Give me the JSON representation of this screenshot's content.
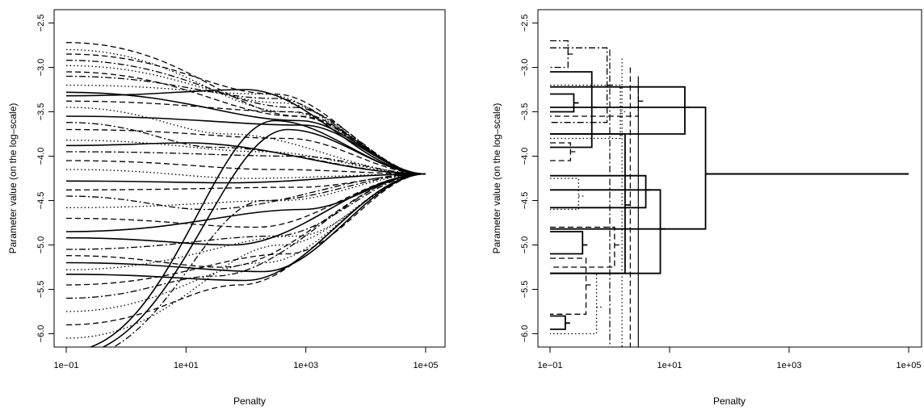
{
  "chart_data": [
    {
      "type": "line",
      "xlabel": "Penalty",
      "ylabel": "Parameter value (on the log–scale)",
      "x_scale": "log10",
      "xlim": [
        0.1,
        100000
      ],
      "ylim": [
        -6.15,
        -2.35
      ],
      "x_ticks": [
        0.1,
        10,
        1000,
        100000
      ],
      "x_tick_labels": [
        "1e−01",
        "1e+01",
        "1e+03",
        "1e+05"
      ],
      "y_ticks": [
        -6.0,
        -5.5,
        -5.0,
        -4.5,
        -4.0,
        -3.5,
        -3.0,
        -2.5
      ],
      "y_tick_labels": [
        "−6.0",
        "−5.5",
        "−5.0",
        "−4.5",
        "−4.0",
        "−3.5",
        "−3.0",
        "−2.5"
      ],
      "grid": false,
      "legend": "none",
      "converge_value": -4.2,
      "converge_x": 100000,
      "series": [
        {
          "start": -2.72,
          "mid_x": 800,
          "mid_y": -3.55,
          "style": "dashed"
        },
        {
          "start": -2.8,
          "mid_x": 500,
          "mid_y": -3.5,
          "style": "dotted"
        },
        {
          "start": -2.85,
          "mid_x": 300,
          "mid_y": -3.3,
          "style": "dashed"
        },
        {
          "start": -2.92,
          "mid_x": 600,
          "mid_y": -3.45,
          "style": "dashdot"
        },
        {
          "start": -2.98,
          "mid_x": 400,
          "mid_y": -3.4,
          "style": "dotted"
        },
        {
          "start": -3.05,
          "mid_x": 700,
          "mid_y": -3.55,
          "style": "dashed"
        },
        {
          "start": -3.1,
          "mid_x": 300,
          "mid_y": -3.35,
          "style": "dashdot"
        },
        {
          "start": -3.2,
          "mid_x": 200,
          "mid_y": -3.3,
          "style": "dotted"
        },
        {
          "start": -3.28,
          "mid_x": 800,
          "mid_y": -3.6,
          "style": "solid"
        },
        {
          "start": -3.32,
          "mid_x": 100,
          "mid_y": -3.25,
          "style": "solid"
        },
        {
          "start": -3.38,
          "mid_x": 600,
          "mid_y": -3.5,
          "style": "dashed"
        },
        {
          "start": -3.45,
          "mid_x": 50,
          "mid_y": -3.75,
          "style": "dotted"
        },
        {
          "start": -3.55,
          "mid_x": 900,
          "mid_y": -3.65,
          "style": "solid"
        },
        {
          "start": -3.62,
          "mid_x": 30,
          "mid_y": -3.9,
          "style": "dashdot"
        },
        {
          "start": -3.7,
          "mid_x": 500,
          "mid_y": -3.8,
          "style": "dashed"
        },
        {
          "start": -3.82,
          "mid_x": 200,
          "mid_y": -3.95,
          "style": "dotted"
        },
        {
          "start": -3.88,
          "mid_x": 10,
          "mid_y": -3.85,
          "style": "solid"
        },
        {
          "start": -3.95,
          "mid_x": 700,
          "mid_y": -4.0,
          "style": "dashdot"
        },
        {
          "start": -4.05,
          "mid_x": 300,
          "mid_y": -4.15,
          "style": "dashed"
        },
        {
          "start": -4.15,
          "mid_x": 100,
          "mid_y": -4.25,
          "style": "dotted"
        },
        {
          "start": -4.28,
          "mid_x": 50,
          "mid_y": -4.3,
          "style": "solid"
        },
        {
          "start": -4.38,
          "mid_x": 800,
          "mid_y": -4.35,
          "style": "dashed"
        },
        {
          "start": -4.45,
          "mid_x": 20,
          "mid_y": -4.6,
          "style": "dashdot"
        },
        {
          "start": -4.58,
          "mid_x": 400,
          "mid_y": -4.5,
          "style": "dotted"
        },
        {
          "start": -4.7,
          "mid_x": 150,
          "mid_y": -4.8,
          "style": "dashed"
        },
        {
          "start": -4.85,
          "mid_x": 900,
          "mid_y": -4.6,
          "style": "solid"
        },
        {
          "start": -4.92,
          "mid_x": 60,
          "mid_y": -5.0,
          "style": "solid"
        },
        {
          "start": -5.05,
          "mid_x": 300,
          "mid_y": -4.9,
          "style": "dashdot"
        },
        {
          "start": -5.12,
          "mid_x": 40,
          "mid_y": -5.25,
          "style": "dashed"
        },
        {
          "start": -5.2,
          "mid_x": 200,
          "mid_y": -5.3,
          "style": "solid"
        },
        {
          "start": -5.28,
          "mid_x": 700,
          "mid_y": -4.9,
          "style": "dotted"
        },
        {
          "start": -5.33,
          "mid_x": 100,
          "mid_y": -5.4,
          "style": "solid"
        },
        {
          "start": -5.45,
          "mid_x": 500,
          "mid_y": -5.1,
          "style": "dashed"
        },
        {
          "start": -5.6,
          "mid_x": 30,
          "mid_y": -5.35,
          "style": "dashdot"
        },
        {
          "start": -5.75,
          "mid_x": 200,
          "mid_y": -5.2,
          "style": "dotted"
        },
        {
          "start": -5.9,
          "mid_x": 80,
          "mid_y": -5.45,
          "style": "dashed"
        },
        {
          "start": -6.05,
          "mid_x": 400,
          "mid_y": -5.0,
          "style": "dotted"
        },
        {
          "start": -6.2,
          "mid_x": 300,
          "mid_y": -3.6,
          "style": "solid"
        },
        {
          "start": -6.25,
          "mid_x": 500,
          "mid_y": -3.7,
          "style": "solid"
        },
        {
          "start": -6.3,
          "mid_x": 200,
          "mid_y": -4.5,
          "style": "dashdot"
        }
      ]
    },
    {
      "type": "dendrogram",
      "xlabel": "Penalty",
      "ylabel": "Parameter value (on the log–scale)",
      "x_scale": "log10",
      "xlim": [
        0.1,
        100000
      ],
      "ylim": [
        -6.15,
        -2.35
      ],
      "x_ticks": [
        0.1,
        10,
        1000,
        100000
      ],
      "x_tick_labels": [
        "1e−01",
        "1e+01",
        "1e+03",
        "1e+05"
      ],
      "y_ticks": [
        -6.0,
        -5.5,
        -5.0,
        -4.5,
        -4.0,
        -3.5,
        -3.0,
        -2.5
      ],
      "y_tick_labels": [
        "−6.0",
        "−5.5",
        "−5.0",
        "−4.5",
        "−4.0",
        "−3.5",
        "−3.0",
        "−2.5"
      ],
      "grid": false,
      "legend": "none",
      "merges": [
        {
          "x": 40,
          "y1": -3.45,
          "y2": -4.82,
          "y": -4.2,
          "style": "solid"
        },
        {
          "x": 18,
          "y1": -3.22,
          "y2": -3.75,
          "y": -3.45,
          "style": "solid"
        },
        {
          "x": 7,
          "y1": -4.38,
          "y2": -5.32,
          "y": -4.82,
          "style": "solid"
        },
        {
          "x": 4,
          "y1": -4.22,
          "y2": -4.58,
          "y": -4.38,
          "style": "solid"
        },
        {
          "x": 1.8,
          "y1": -3.75,
          "y2": -5.32,
          "y": -4.55,
          "style": "solid"
        },
        {
          "x": 3,
          "y1": -3.22,
          "y2": -3.55,
          "y": -3.38,
          "style": "dashed"
        },
        {
          "x": 0.9,
          "y1": -2.78,
          "y2": -3.62,
          "y": -3.2,
          "style": "dashdot"
        },
        {
          "x": 0.5,
          "y1": -3.05,
          "y2": -3.9,
          "y": -3.45,
          "style": "solid"
        },
        {
          "x": 0.35,
          "y1": -4.85,
          "y2": -5.1,
          "y": -5.0,
          "style": "solid"
        },
        {
          "x": 0.4,
          "y1": -5.15,
          "y2": -5.78,
          "y": -5.45,
          "style": "dashed"
        },
        {
          "x": 0.25,
          "y1": -3.3,
          "y2": -3.5,
          "y": -3.4,
          "style": "solid"
        },
        {
          "x": 0.3,
          "y1": -4.25,
          "y2": -4.6,
          "y": -4.45,
          "style": "dotted"
        },
        {
          "x": 0.6,
          "y1": -5.32,
          "y2": -6.0,
          "y": -5.7,
          "style": "dotted"
        },
        {
          "x": 0.2,
          "y1": -2.7,
          "y2": -3.0,
          "y": -2.85,
          "style": "dashdot"
        },
        {
          "x": 0.22,
          "y1": -3.85,
          "y2": -4.05,
          "y": -3.95,
          "style": "dashed"
        },
        {
          "x": 0.18,
          "y1": -5.8,
          "y2": -5.95,
          "y": -5.88,
          "style": "solid"
        },
        {
          "x": 1.2,
          "y1": -4.8,
          "y2": -5.25,
          "y": -5.0,
          "style": "dashed"
        },
        {
          "x": 1.5,
          "y1": -3.2,
          "y2": -3.8,
          "y": -3.5,
          "style": "dotted"
        }
      ]
    }
  ]
}
